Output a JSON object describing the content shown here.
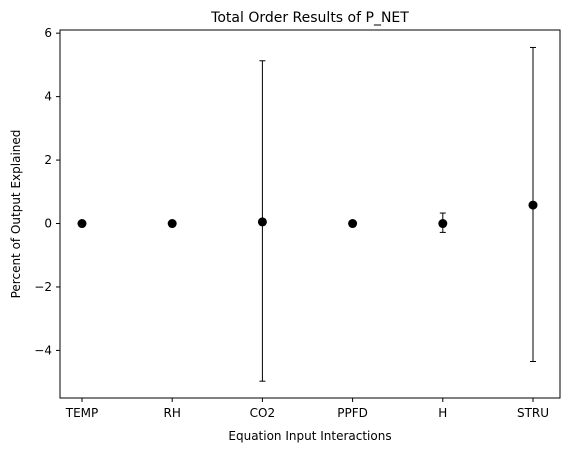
{
  "chart_data": {
    "type": "scatter",
    "title": "Total Order Results of P_NET",
    "xlabel": "Equation Input Interactions",
    "ylabel": "Percent of Output Explained",
    "categories": [
      "TEMP",
      "RH",
      "CO2",
      "PPFD",
      "H",
      "STRU"
    ],
    "values": [
      0.0,
      0.0,
      0.05,
      0.0,
      0.0,
      0.58
    ],
    "error_low": [
      0.0,
      0.0,
      -4.97,
      0.0,
      -0.28,
      -4.35
    ],
    "error_high": [
      0.0,
      0.0,
      5.13,
      0.0,
      0.33,
      5.55
    ],
    "ylim": [
      -5.5,
      6.1
    ],
    "yticks": [
      -4,
      -2,
      0,
      2,
      4,
      6
    ],
    "grid": false,
    "marker_color": "#000000"
  }
}
